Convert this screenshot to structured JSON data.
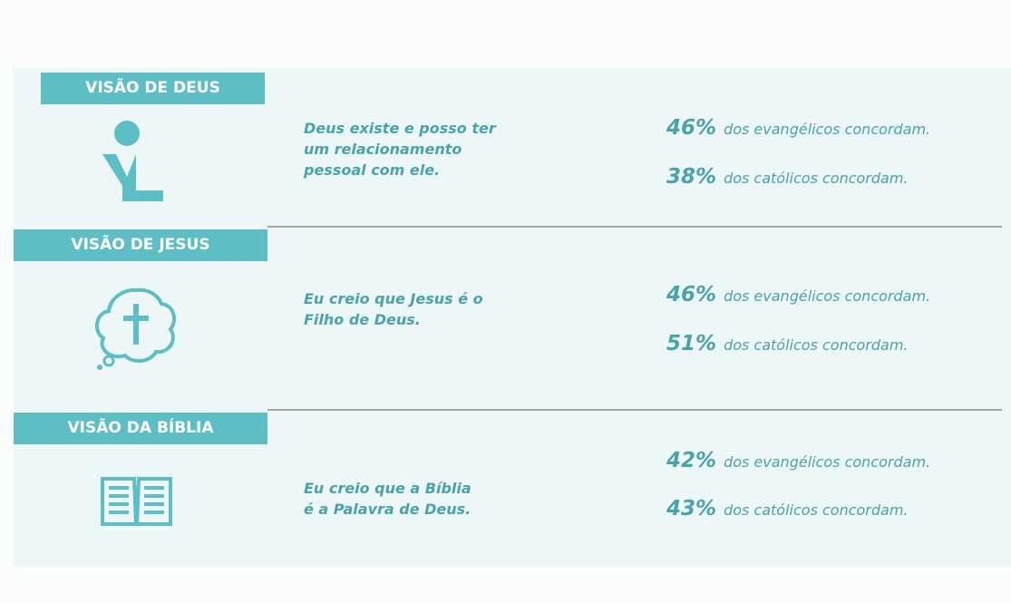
{
  "sections": [
    {
      "title": "VISÃO DE DEUS",
      "statement": [
        "Deus existe e posso ter",
        "um relacionamento",
        "pessoal com ele."
      ],
      "stats": [
        {
          "percent": "46%",
          "text": "dos evangélicos concordam."
        },
        {
          "percent": "38%",
          "text": "dos católicos concordam."
        }
      ]
    },
    {
      "title": "VISÃO DE JESUS",
      "statement": [
        "Eu creio que Jesus é o",
        "Filho de Deus."
      ],
      "stats": [
        {
          "percent": "46%",
          "text": "dos evangélicos concordam."
        },
        {
          "percent": "51%",
          "text": "dos católicos concordam."
        }
      ]
    },
    {
      "title": "VISÃO DA BÍBLIA",
      "statement": [
        "Eu creio que a Bíblia",
        "é a Palavra de Deus."
      ],
      "stats": [
        {
          "percent": "42%",
          "text": "dos evangélicos concordam."
        },
        {
          "percent": "43%",
          "text": "dos católicos concordam."
        }
      ]
    }
  ]
}
